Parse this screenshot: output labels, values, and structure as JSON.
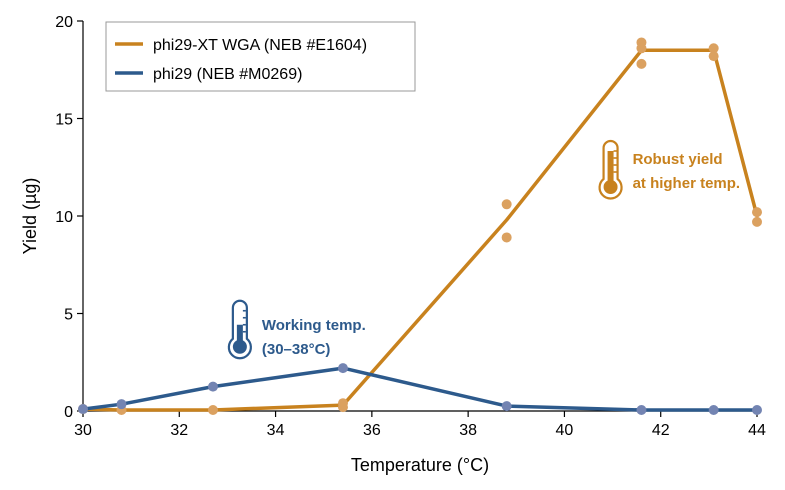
{
  "chart_data": {
    "type": "line",
    "xlabel": "Temperature (°C)",
    "ylabel": "Yield (µg)",
    "xlim": [
      30,
      44
    ],
    "ylim": [
      0,
      20
    ],
    "xticks": [
      30,
      32,
      34,
      36,
      38,
      40,
      42,
      44
    ],
    "yticks": [
      0,
      5,
      10,
      15,
      20
    ],
    "legend_position": "top-left",
    "series": [
      {
        "name": "phi29-XT WGA (NEB #E1604)",
        "color": "#c8821e",
        "point_color": "#dba160",
        "line": [
          {
            "x": 30.0,
            "y": 0.1
          },
          {
            "x": 30.8,
            "y": 0.05
          },
          {
            "x": 32.7,
            "y": 0.05
          },
          {
            "x": 35.4,
            "y": 0.3
          },
          {
            "x": 38.8,
            "y": 9.8
          },
          {
            "x": 41.6,
            "y": 18.5
          },
          {
            "x": 43.1,
            "y": 18.5
          },
          {
            "x": 44.0,
            "y": 10.0
          }
        ],
        "points": [
          {
            "x": 30.0,
            "y": 0.1
          },
          {
            "x": 30.8,
            "y": 0.05
          },
          {
            "x": 32.7,
            "y": 0.05
          },
          {
            "x": 35.4,
            "y": 0.2
          },
          {
            "x": 35.4,
            "y": 0.4
          },
          {
            "x": 38.8,
            "y": 10.6
          },
          {
            "x": 38.8,
            "y": 8.9
          },
          {
            "x": 41.6,
            "y": 18.9
          },
          {
            "x": 41.6,
            "y": 18.6
          },
          {
            "x": 41.6,
            "y": 17.8
          },
          {
            "x": 43.1,
            "y": 18.6
          },
          {
            "x": 43.1,
            "y": 18.2
          },
          {
            "x": 44.0,
            "y": 10.2
          },
          {
            "x": 44.0,
            "y": 9.7
          }
        ]
      },
      {
        "name": "phi29 (NEB #M0269)",
        "color": "#2d5a8c",
        "point_color": "#7384b2",
        "line": [
          {
            "x": 30.0,
            "y": 0.1
          },
          {
            "x": 30.8,
            "y": 0.35
          },
          {
            "x": 32.7,
            "y": 1.25
          },
          {
            "x": 35.4,
            "y": 2.2
          },
          {
            "x": 38.8,
            "y": 0.25
          },
          {
            "x": 41.6,
            "y": 0.05
          },
          {
            "x": 43.1,
            "y": 0.05
          },
          {
            "x": 44.0,
            "y": 0.05
          }
        ],
        "points": [
          {
            "x": 30.0,
            "y": 0.1
          },
          {
            "x": 30.8,
            "y": 0.35
          },
          {
            "x": 32.7,
            "y": 1.25
          },
          {
            "x": 35.4,
            "y": 2.2
          },
          {
            "x": 38.8,
            "y": 0.25
          },
          {
            "x": 41.6,
            "y": 0.05
          },
          {
            "x": 43.1,
            "y": 0.05
          },
          {
            "x": 44.0,
            "y": 0.05
          }
        ]
      }
    ],
    "annotations": [
      {
        "lines": [
          "Robust yield",
          "at higher temp."
        ],
        "color": "#c8821e",
        "icon": "thermometer-high-icon",
        "x": 41.0,
        "y": 12.0
      },
      {
        "lines": [
          "Working temp.",
          "(30–38°C)"
        ],
        "color": "#2d5a8c",
        "icon": "thermometer-low-icon",
        "x": 33.3,
        "y": 3.5
      }
    ]
  }
}
